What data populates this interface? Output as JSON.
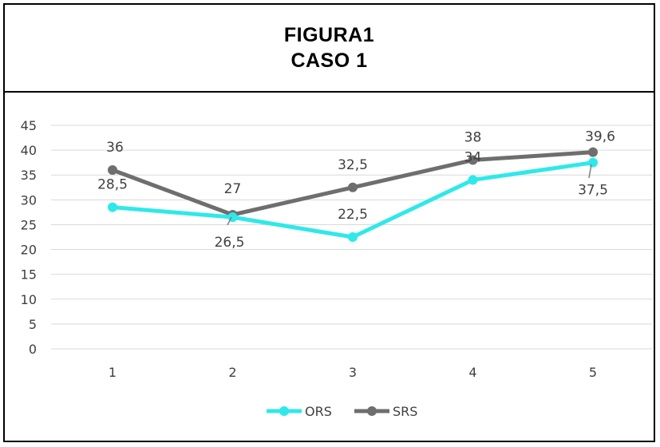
{
  "title_lines": [
    "FIGURA1",
    "CASO 1"
  ],
  "chart_data": {
    "type": "line",
    "categories": [
      "1",
      "2",
      "3",
      "4",
      "5"
    ],
    "series": [
      {
        "name": "ORS",
        "values": [
          28.5,
          26.5,
          22.5,
          34,
          37.5
        ],
        "labels": [
          "28,5",
          "26,5",
          "22,5",
          "34",
          "37,5"
        ],
        "color": "#2FE8EA"
      },
      {
        "name": "SRS",
        "values": [
          36,
          27,
          32.5,
          38,
          39.6
        ],
        "labels": [
          "36",
          "27",
          "32,5",
          "38",
          "39,6"
        ],
        "color": "#6E6E6E"
      }
    ],
    "ylim": [
      0,
      45
    ],
    "yticks": [
      "0",
      "5",
      "10",
      "15",
      "20",
      "25",
      "30",
      "35",
      "40",
      "45"
    ],
    "grid": true,
    "legend": "bottom"
  }
}
